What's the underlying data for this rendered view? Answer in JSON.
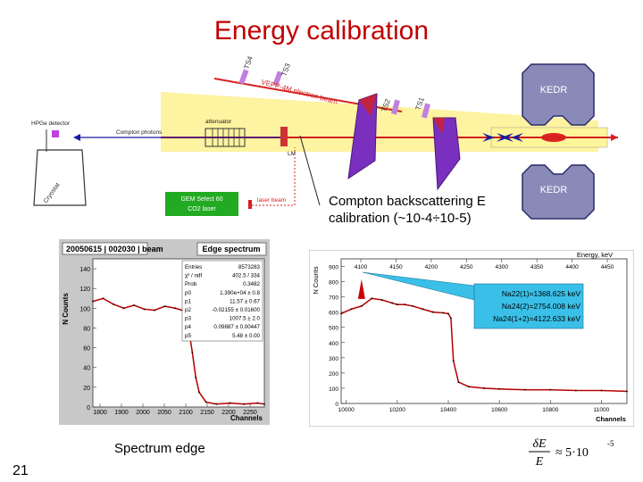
{
  "title": "Energy calibration",
  "scheme": {
    "kedr_top": "KEDR",
    "kedr_bottom": "KEDR",
    "hpge": "HPGe detector",
    "cryostat": "Cryostat",
    "compton_photons": "Compton photons",
    "attenuator": "attenuator",
    "lm": "LM",
    "laser_name": "GEM Select 60",
    "laser_sub": "CO2 laser",
    "laser_beam": "laser beam",
    "vepp": "VEPP-4M electron beam",
    "ts1": "TS1",
    "ts2": "TS2",
    "ts3": "TS3",
    "ts4": "TS4",
    "colors": {
      "beam_band": "#fdf3a0",
      "kedr": "#8a8ab8",
      "magnet": "#7b2fbe",
      "laser_box": "#22aa22",
      "beam_line": "#d42020",
      "arrow": "#1a1aa0"
    }
  },
  "compton": {
    "line1": "Compton backscattering E",
    "line2": "calibration (~10-4÷10-5)"
  },
  "left_hist": {
    "header": "20050615 | 002030 | beam",
    "title": "Edge spectrum",
    "ylabel": "N Counts",
    "xlabel": "Channels",
    "stats_keys": [
      "Entries",
      "χ² / ndf",
      "Prob",
      "p0",
      "p1",
      "p2",
      "p3",
      "p4",
      "p5"
    ],
    "stats_vals": [
      "8573283",
      "402.5 / 334",
      "0.3482",
      "1.390e+04 ± 0.8",
      "11.57 ± 0.67",
      "-0.02155 ± 0.01600",
      "1007.5 ± 2.0",
      "0.09887 ± 0.00447",
      "5.48 ± 0.00"
    ]
  },
  "right_hist": {
    "energy_label": "Energy, keV",
    "ylabel": "N Counts",
    "xlabel": "Channels",
    "annot1": "Na22(1)=1368.625 keV",
    "annot2": "Na24(2)=2754.008 keV",
    "annot3": "Na24(1+2)=4122.633 keV"
  },
  "chart_data": [
    {
      "type": "line",
      "title": "Edge spectrum",
      "ylabel": "N Counts",
      "xlabel": "Channels",
      "x_ticks": [
        "1800",
        "1900",
        "2000",
        "2050",
        "2100",
        "2150",
        "2200",
        "2250"
      ],
      "y_ticks": [
        "0",
        "20",
        "40",
        "60",
        "80",
        "100",
        "120",
        "140"
      ],
      "xlim": [
        1800,
        2300
      ],
      "ylim": [
        0,
        150
      ],
      "x": [
        1800,
        1830,
        1860,
        1890,
        1920,
        1950,
        1980,
        2010,
        2040,
        2060,
        2070,
        2080,
        2090,
        2100,
        2110,
        2130,
        2160,
        2200,
        2240,
        2280,
        2300
      ],
      "y": [
        107,
        110,
        104,
        100,
        103,
        99,
        98,
        102,
        100,
        98,
        94,
        78,
        55,
        30,
        15,
        5,
        3,
        4,
        3,
        4,
        3
      ]
    },
    {
      "type": "line",
      "xlabel": "Channels",
      "ylabel": "N Counts",
      "x_ticks": [
        "10000",
        "10200",
        "10400",
        "10600",
        "10800",
        "11000"
      ],
      "y_ticks": [
        "0",
        "100",
        "200",
        "300",
        "400",
        "500",
        "600",
        "700",
        "800",
        "900"
      ],
      "energy_ticks": [
        "4100",
        "4150",
        "4200",
        "4250",
        "4300",
        "4350",
        "4400",
        "4450"
      ],
      "xlim": [
        9980,
        11100
      ],
      "ylim": [
        0,
        950
      ],
      "x": [
        9980,
        10020,
        10060,
        10100,
        10140,
        10180,
        10200,
        10230,
        10260,
        10300,
        10340,
        10380,
        10400,
        10410,
        10420,
        10440,
        10480,
        10540,
        10600,
        10700,
        10800,
        10900,
        11000,
        11100
      ],
      "y": [
        590,
        620,
        640,
        690,
        680,
        660,
        650,
        650,
        640,
        620,
        600,
        595,
        590,
        560,
        280,
        140,
        110,
        100,
        95,
        90,
        90,
        85,
        85,
        80
      ]
    }
  ],
  "formula": {
    "numerator": "δE",
    "denominator": "E",
    "approx": "≈ 5·10",
    "exp": "-5"
  },
  "spectrum_edge": "Spectrum edge",
  "slide_number": "21"
}
